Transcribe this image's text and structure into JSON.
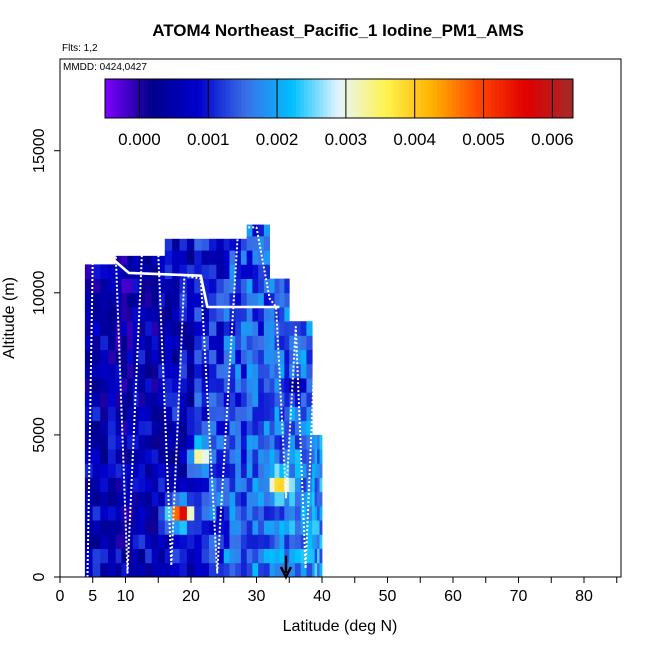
{
  "chart_data": {
    "type": "heatmap",
    "title": "ATOM4 Northeast_Pacific_1 Iodine_PM1_AMS",
    "flights_note": "Flts: 1,2",
    "date_note": "MMDD: 0424,0427",
    "xlabel": "Latitude (deg N)",
    "ylabel": "Altitude (m)",
    "xlim": [
      0,
      85
    ],
    "ylim": [
      0,
      18000
    ],
    "x_ticks": [
      0,
      5,
      10,
      20,
      30,
      40,
      50,
      60,
      70,
      80
    ],
    "x_minor_ticks": [
      15,
      25,
      35,
      45,
      55,
      65,
      75,
      85
    ],
    "y_ticks": [
      0,
      5000,
      10000,
      15000
    ],
    "colorbar": {
      "min": -0.0005,
      "max": 0.0063,
      "ticks": [
        0.0,
        0.001,
        0.002,
        0.003,
        0.004,
        0.005,
        0.006
      ],
      "tick_labels": [
        "0.000",
        "0.001",
        "0.002",
        "0.003",
        "0.004",
        "0.005",
        "0.006"
      ],
      "colors": [
        "#7f00ff",
        "#00008b",
        "#0000cd",
        "#3a6fe8",
        "#00bfff",
        "#e6f5ff",
        "#fff44f",
        "#ffb000",
        "#ff4500",
        "#e00000",
        "#a52a2a"
      ]
    },
    "arrow_marker": {
      "lat": 34.5,
      "alt_top": 750,
      "alt_bottom": 0
    },
    "columns": [
      {
        "lat0": 3.8,
        "lat1": 8.5,
        "alt_top": 11000,
        "base": 0.0007
      },
      {
        "lat0": 8.5,
        "lat1": 12.0,
        "alt_top": 11300,
        "base": 0.0006
      },
      {
        "lat0": 12.0,
        "lat1": 16.0,
        "alt_top": 11300,
        "base": 0.0007
      },
      {
        "lat0": 16.0,
        "lat1": 20.5,
        "alt_top": 11900,
        "base": 0.0009
      },
      {
        "lat0": 20.5,
        "lat1": 25.0,
        "alt_top": 11900,
        "base": 0.0013
      },
      {
        "lat0": 25.0,
        "lat1": 28.5,
        "alt_top": 11900,
        "base": 0.0015
      },
      {
        "lat0": 28.5,
        "lat1": 32.0,
        "alt_top": 12400,
        "base": 0.0016
      },
      {
        "lat0": 32.0,
        "lat1": 35.0,
        "alt_top": 10500,
        "base": 0.0017
      },
      {
        "lat0": 35.0,
        "lat1": 38.5,
        "alt_top": 9000,
        "base": 0.0018
      },
      {
        "lat0": 38.5,
        "lat1": 40.0,
        "alt_top": 5000,
        "base": 0.0019
      }
    ],
    "hotspots": [
      {
        "lat": 18.5,
        "alt": 2200,
        "value": 0.0058
      },
      {
        "lat": 33.5,
        "alt": 3300,
        "value": 0.004
      },
      {
        "lat": 21.5,
        "alt": 4300,
        "value": 0.0035
      },
      {
        "lat": 17.0,
        "alt": 4300,
        "value": 0.0002
      },
      {
        "lat": 36.0,
        "alt": 6700,
        "value": 0.0001
      }
    ],
    "flight_track_1": [
      [
        4.2,
        0
      ],
      [
        5.0,
        11300
      ],
      [
        8.5,
        11400
      ],
      [
        10.3,
        150
      ],
      [
        12.5,
        11350
      ],
      [
        15.0,
        11350
      ],
      [
        17.0,
        400
      ],
      [
        19.0,
        10600
      ],
      [
        21.5,
        10500
      ],
      [
        24.0,
        150
      ],
      [
        27.2,
        12300
      ],
      [
        30.0,
        12300
      ],
      [
        32.0,
        9800
      ],
      [
        33.0,
        9500
      ],
      [
        34.5,
        2800
      ],
      [
        36.0,
        8800
      ],
      [
        37.5,
        300
      ],
      [
        39.0,
        8500
      ]
    ],
    "flight_track_2": [
      [
        4.5,
        11200
      ],
      [
        7.5,
        11300
      ],
      [
        10.5,
        10700
      ],
      [
        16.0,
        10650
      ],
      [
        21.5,
        10600
      ],
      [
        22.5,
        9500
      ],
      [
        33.5,
        9500
      ]
    ]
  }
}
